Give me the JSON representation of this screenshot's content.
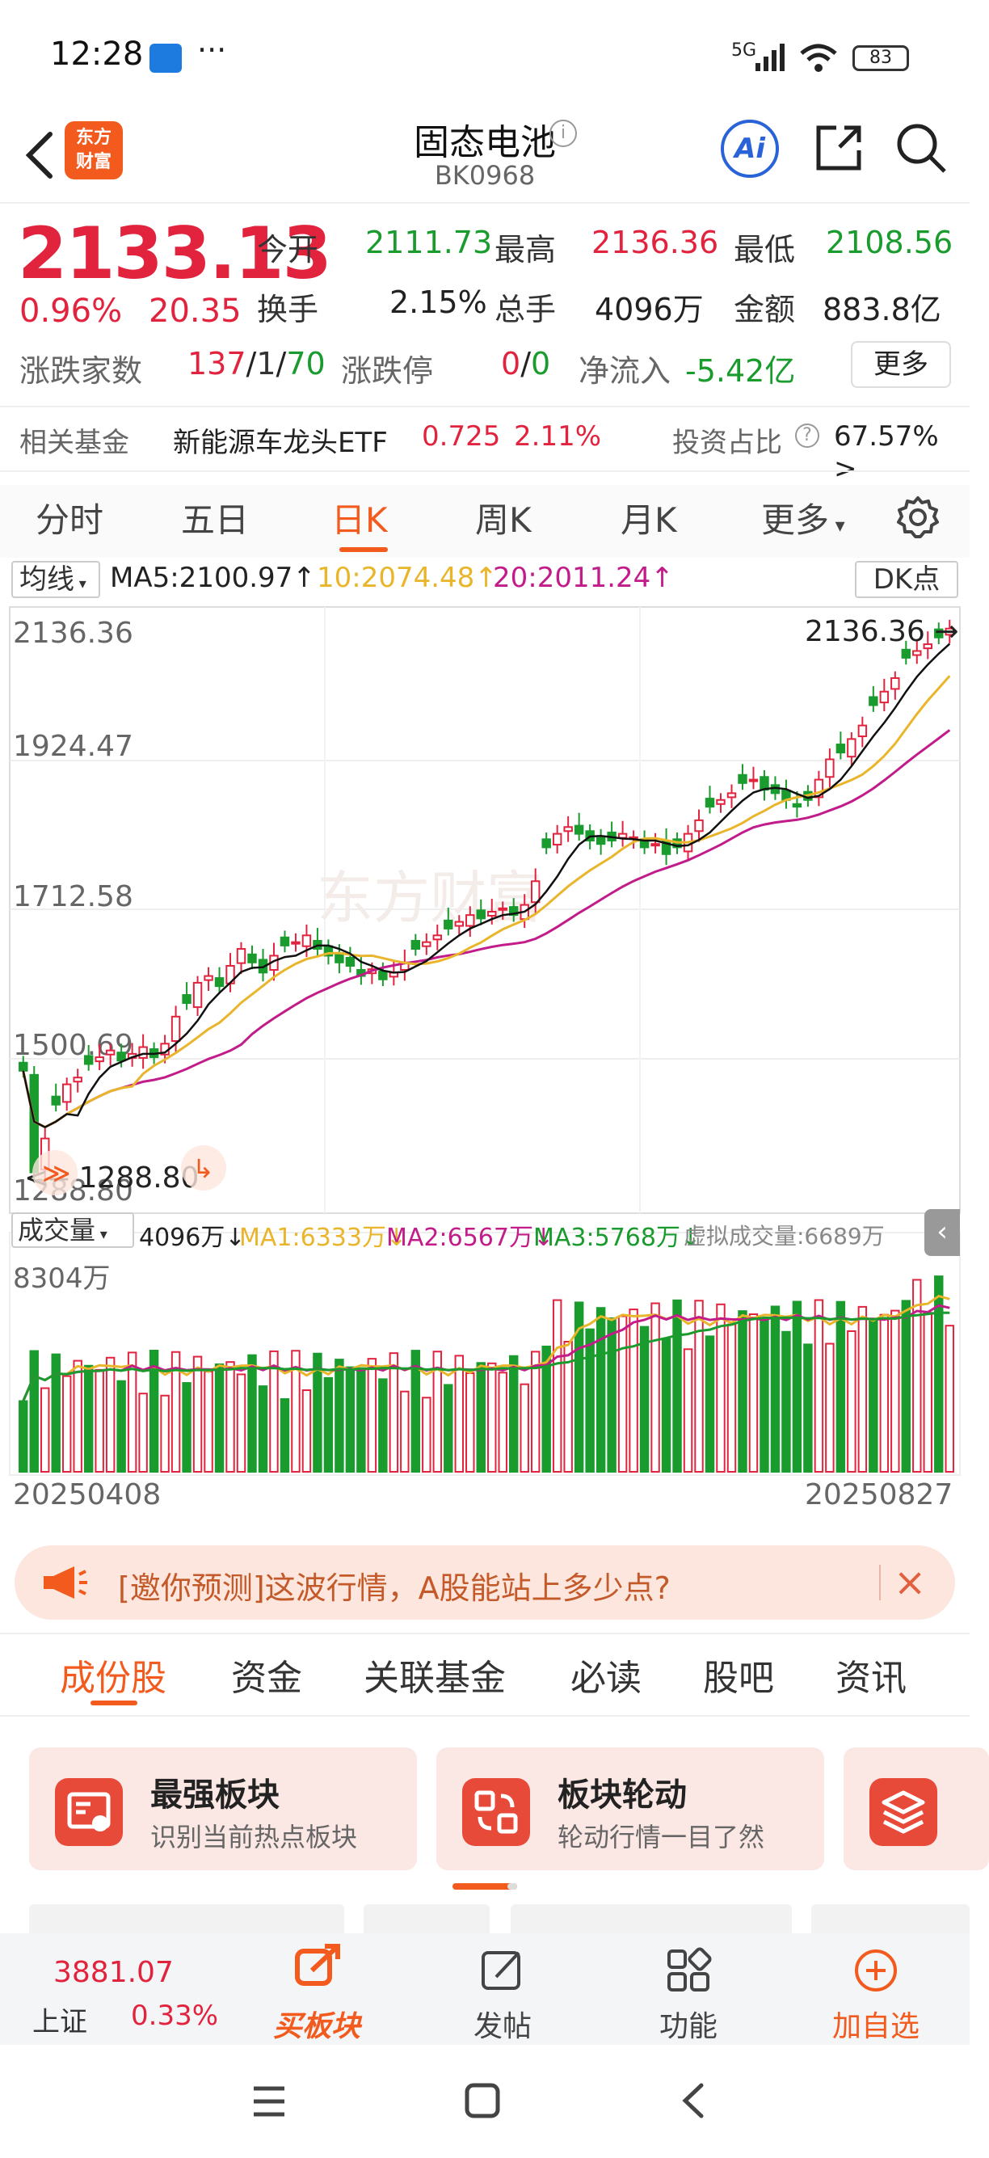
{
  "status_bar": {
    "time": "12:28",
    "dots": "···",
    "signal": "5G",
    "battery": "83"
  },
  "header": {
    "logo_text": "东方\n财富",
    "title": "固态电池",
    "code": "BK0968",
    "ai_label": "Ai"
  },
  "quote": {
    "price": "2133.13",
    "change_pct": "0.96%",
    "change": "20.35",
    "open_label": "今开",
    "open": "2111.73",
    "high_label": "最高",
    "high": "2136.36",
    "low_label": "最低",
    "low": "2108.56",
    "turnover_label": "换手",
    "turnover": "2.15%",
    "volume_label": "总手",
    "volume": "4096万",
    "amount_label": "金额",
    "amount": "883.8亿",
    "updown_label": "涨跌家数",
    "up": "137",
    "flat": "1",
    "down": "70",
    "limit_label": "涨跌停",
    "limit_up": "0",
    "limit_down": "0",
    "inflow_label": "净流入",
    "inflow": "-5.42亿",
    "more_label": "更多"
  },
  "fund": {
    "label": "相关基金",
    "name": "新能源车龙头ETF",
    "price": "0.725",
    "pct": "2.11%",
    "ratio_label": "投资占比",
    "ratio": "67.57% >"
  },
  "period_tabs": [
    {
      "label": "分时"
    },
    {
      "label": "五日"
    },
    {
      "label": "日K"
    },
    {
      "label": "周K"
    },
    {
      "label": "月K"
    },
    {
      "label": "更多"
    }
  ],
  "indicators": {
    "ma_select": "均线",
    "ma5": "MA5:2100.97",
    "ma10": "10:2074.48",
    "ma20": "20:2011.24",
    "dk": "DK点",
    "vol_select": "成交量",
    "vol": "4096万",
    "ma1": "MA1:6333万",
    "ma2": "MA2:6567万",
    "ma3": "MA3:5768万",
    "virtual": "虚拟成交量:6689万"
  },
  "chart_labels": {
    "y_top": "2136.36",
    "y2": "1924.47",
    "y3": "1712.58",
    "y4": "1500.69",
    "y_bottom": "1288.80",
    "high_mark": "2136.36",
    "low_mark": "1288.80",
    "vol_max": "8304万",
    "date_start": "20250408",
    "date_end": "20250827",
    "watermark": "东方财富"
  },
  "chart_data": {
    "type": "candlestick",
    "ylim": [
      1288.8,
      2136.36
    ],
    "y_ticks": [
      2136.36,
      1924.47,
      1712.58,
      1500.69,
      1288.8
    ],
    "x_range": [
      "20250408",
      "20250827"
    ],
    "close": [
      1480,
      1330,
      1380,
      1430,
      1460,
      1470,
      1490,
      1500,
      1510,
      1495,
      1505,
      1515,
      1500,
      1520,
      1560,
      1580,
      1610,
      1620,
      1605,
      1635,
      1660,
      1640,
      1625,
      1650,
      1665,
      1670,
      1680,
      1660,
      1650,
      1640,
      1635,
      1620,
      1630,
      1615,
      1625,
      1640,
      1660,
      1670,
      1680,
      1690,
      1700,
      1710,
      1705,
      1715,
      1720,
      1710,
      1725,
      1760,
      1810,
      1830,
      1840,
      1830,
      1820,
      1815,
      1820,
      1830,
      1825,
      1810,
      1815,
      1800,
      1810,
      1830,
      1850,
      1870,
      1880,
      1890,
      1905,
      1910,
      1895,
      1890,
      1880,
      1870,
      1880,
      1910,
      1940,
      1950,
      1970,
      1990,
      2020,
      2040,
      2060,
      2090,
      2100,
      2110,
      2120,
      2133.13
    ],
    "ma5": [
      2100.97
    ],
    "ma10": [
      2074.48
    ],
    "ma20": [
      2011.24
    ],
    "volume_max": "8304万",
    "volume_last": "4096万"
  },
  "banner": {
    "text": "[邀你预测]这波行情，A股能站上多少点?",
    "close": "×"
  },
  "content_tabs": [
    {
      "label": "成份股"
    },
    {
      "label": "资金"
    },
    {
      "label": "关联基金"
    },
    {
      "label": "必读"
    },
    {
      "label": "股吧"
    },
    {
      "label": "资讯"
    }
  ],
  "cards": [
    {
      "title": "最强板块",
      "subtitle": "识别当前热点板块"
    },
    {
      "title": "板块轮动",
      "subtitle": "轮动行情一目了然"
    }
  ],
  "bottom_bar": {
    "index_value": "3881.07",
    "index_name": "上证",
    "index_pct": "0.33%",
    "items": [
      {
        "label": "买板块"
      },
      {
        "label": "发帖"
      },
      {
        "label": "功能"
      },
      {
        "label": "加自选"
      }
    ]
  },
  "colors": {
    "accent": "#f25a1e",
    "up": "#e2233e",
    "down": "#1a9b2e",
    "ma5": "#111111",
    "ma10": "#e9b52a",
    "ma20": "#c21b8a"
  }
}
